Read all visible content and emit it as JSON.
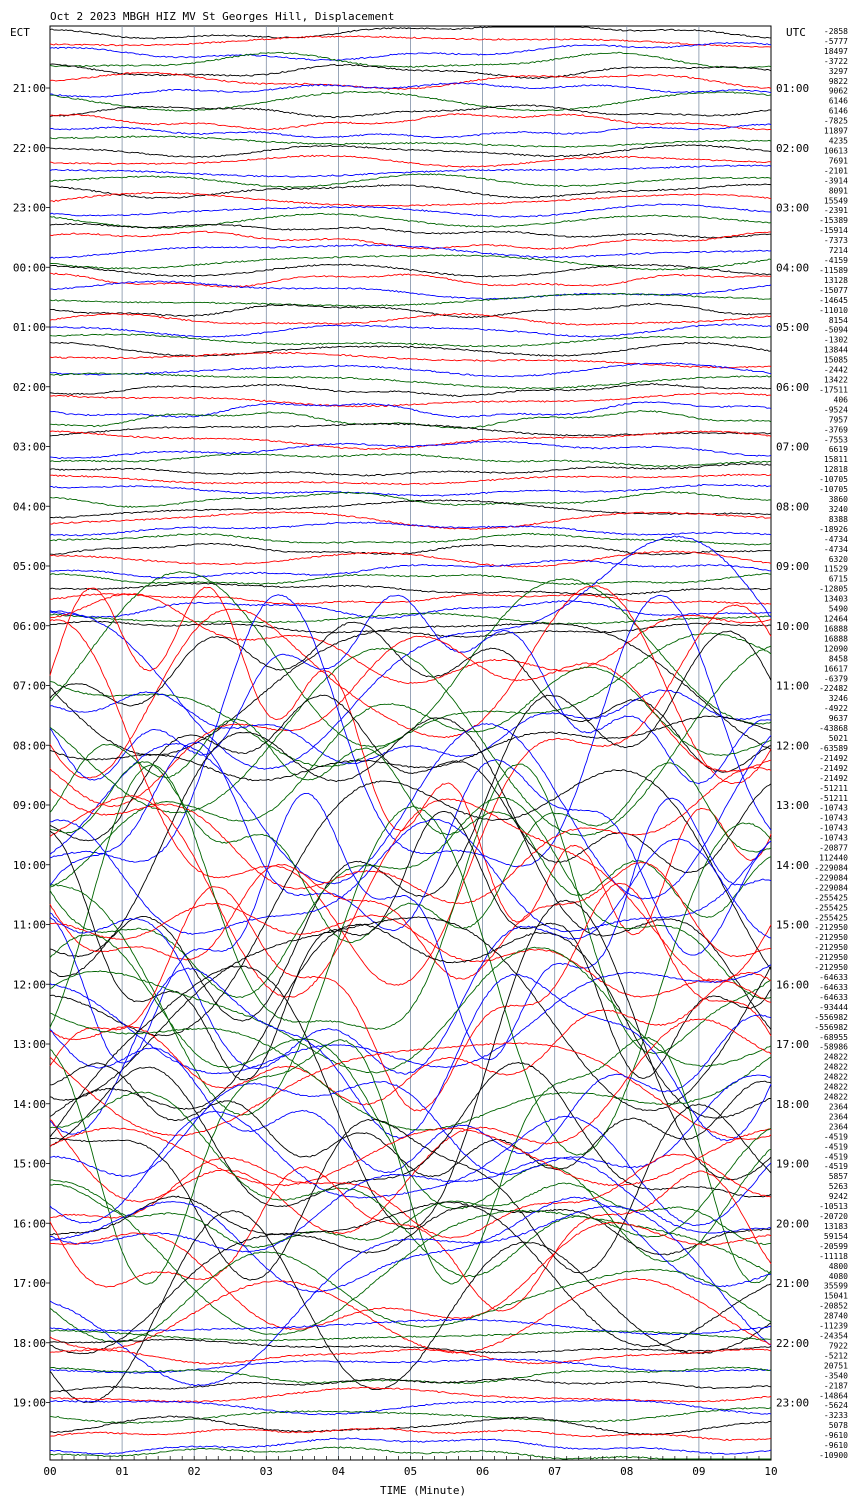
{
  "chart_data": {
    "type": "line",
    "title": "Oct  2 2023 MBGH HIZ MV St Georges Hill, Displacement",
    "left_axis_label": "ECT",
    "right_axis_label": "UTC",
    "xlabel": "TIME (Minute)",
    "x_ticks": [
      "00",
      "01",
      "02",
      "03",
      "04",
      "05",
      "06",
      "07",
      "08",
      "09",
      "10"
    ],
    "xlim": [
      0,
      10
    ],
    "grid": true,
    "trace_colors": [
      "#000000",
      "#ff0000",
      "#0000ff",
      "#006400"
    ],
    "left_hour_labels": [
      "21:00",
      "22:00",
      "23:00",
      "00:00",
      "01:00",
      "02:00",
      "03:00",
      "04:00",
      "05:00",
      "06:00",
      "07:00",
      "08:00",
      "09:00",
      "10:00",
      "11:00",
      "12:00",
      "13:00",
      "14:00",
      "15:00",
      "16:00",
      "17:00",
      "18:00",
      "19:00"
    ],
    "right_hour_labels": [
      "01:00",
      "02:00",
      "03:00",
      "04:00",
      "05:00",
      "06:00",
      "07:00",
      "08:00",
      "09:00",
      "10:00",
      "11:00",
      "12:00",
      "13:00",
      "14:00",
      "15:00",
      "16:00",
      "17:00",
      "18:00",
      "19:00",
      "20:00",
      "21:00",
      "22:00",
      "23:00"
    ],
    "trace_offsets": [
      "-2858",
      "-5777",
      "18497",
      "-3722",
      "3297",
      "9822",
      "9062",
      "6146",
      "6146",
      "-7825",
      "11897",
      "4235",
      "10613",
      "7691",
      "-2101",
      "-3914",
      "8091",
      "15549",
      "-2391",
      "-15389",
      "-15914",
      "-7373",
      "7214",
      "-4159",
      "-11589",
      "13128",
      "-15077",
      "-14645",
      "-11010",
      "8154",
      "-5094",
      "-1302",
      "13844",
      "15085",
      "-2442",
      "13422",
      "-17511",
      "406",
      "-9524",
      "7957",
      "-3769",
      "-7553",
      "6619",
      "15811",
      "12818",
      "-10705",
      "-10705",
      "3860",
      "3240",
      "8388",
      "-18926",
      "-4734",
      "-4734",
      "6320",
      "11529",
      "6715",
      "-12805",
      "13403",
      "5490",
      "12464",
      "16888",
      "16888",
      "12090",
      "8458",
      "16617",
      "-6379",
      "-22482",
      "3246",
      "-4922",
      "9637",
      "-43868",
      "5021",
      "-63589",
      "-21492",
      "-21492",
      "-21492",
      "-51211",
      "-51211",
      "-10743",
      "-10743",
      "-10743",
      "-10743",
      "-20877",
      "112440",
      "-229084",
      "-229084",
      "-229084",
      "-255425",
      "-255425",
      "-255425",
      "-212950",
      "-212950",
      "-212950",
      "-212950",
      "-212950",
      "-64633",
      "-64633",
      "-64633",
      "-93444",
      "-556982",
      "-556982",
      "-68955",
      "-58986",
      "24822",
      "24822",
      "24822",
      "24822",
      "24822",
      "2364",
      "2364",
      "2364",
      "-4519",
      "-4519",
      "-4519",
      "-4519",
      "5857",
      "5263",
      "9242",
      "-10513",
      "-20720",
      "13183",
      "59154",
      "-20599",
      "-11118",
      "4800",
      "4080",
      "35599",
      "15041",
      "-20852",
      "28740",
      "-11239",
      "-24354",
      "7922",
      "-5212",
      "20751",
      "-3540",
      "-2187",
      "-14864",
      "-5624",
      "-3233",
      "5078",
      "-9610",
      "-9610",
      "-10900"
    ]
  }
}
